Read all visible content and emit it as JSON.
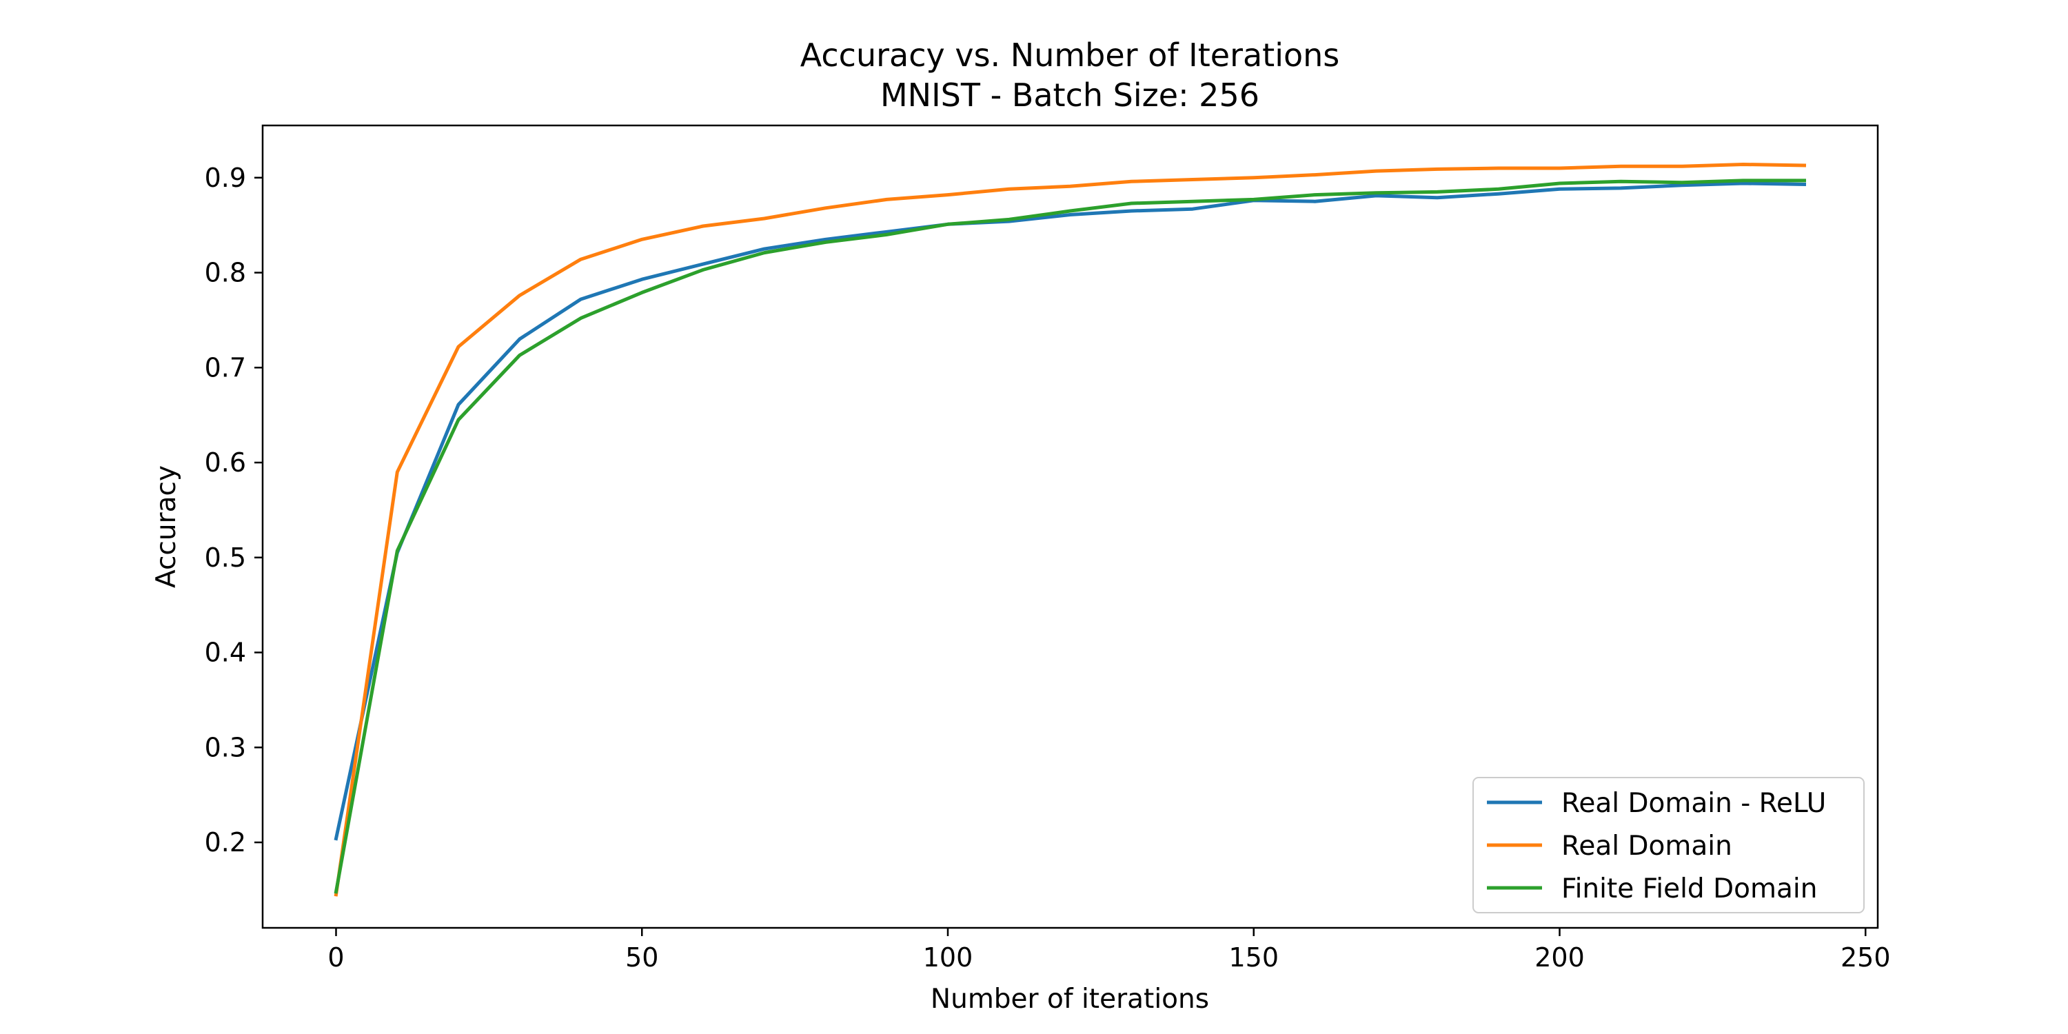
{
  "chart_data": {
    "type": "line",
    "title": "Accuracy vs. Number of Iterations",
    "subtitle": "MNIST - Batch Size: 256",
    "xlabel": "Number of iterations",
    "ylabel": "Accuracy",
    "xlim": [
      -12,
      252
    ],
    "ylim": [
      0.11,
      0.955
    ],
    "xticks": [
      0,
      50,
      100,
      150,
      200,
      250
    ],
    "yticks": [
      0.2,
      0.3,
      0.4,
      0.5,
      0.6,
      0.7,
      0.8,
      0.9
    ],
    "grid": false,
    "legend_position": "lower-right",
    "series": [
      {
        "name": "Real Domain - ReLU",
        "color": "#1f77b4",
        "x": [
          0,
          10,
          20,
          30,
          40,
          50,
          60,
          70,
          80,
          90,
          100,
          110,
          120,
          130,
          140,
          150,
          160,
          170,
          180,
          190,
          200,
          210,
          220,
          230,
          240
        ],
        "values": [
          0.204,
          0.505,
          0.661,
          0.73,
          0.772,
          0.793,
          0.809,
          0.825,
          0.835,
          0.843,
          0.851,
          0.854,
          0.861,
          0.865,
          0.867,
          0.876,
          0.875,
          0.881,
          0.879,
          0.883,
          0.888,
          0.889,
          0.892,
          0.894,
          0.893
        ]
      },
      {
        "name": "Real Domain",
        "color": "#ff7f0e",
        "x": [
          0,
          10,
          20,
          30,
          40,
          50,
          60,
          70,
          80,
          90,
          100,
          110,
          120,
          130,
          140,
          150,
          160,
          170,
          180,
          190,
          200,
          210,
          220,
          230,
          240
        ],
        "values": [
          0.145,
          0.59,
          0.722,
          0.776,
          0.814,
          0.835,
          0.849,
          0.857,
          0.868,
          0.877,
          0.882,
          0.888,
          0.891,
          0.896,
          0.898,
          0.9,
          0.903,
          0.907,
          0.909,
          0.91,
          0.91,
          0.912,
          0.912,
          0.914,
          0.913
        ]
      },
      {
        "name": "Finite Field Domain",
        "color": "#2ca02c",
        "x": [
          0,
          10,
          20,
          30,
          40,
          50,
          60,
          70,
          80,
          90,
          100,
          110,
          120,
          130,
          140,
          150,
          160,
          170,
          180,
          190,
          200,
          210,
          220,
          230,
          240
        ],
        "values": [
          0.148,
          0.507,
          0.645,
          0.713,
          0.752,
          0.779,
          0.803,
          0.821,
          0.832,
          0.84,
          0.851,
          0.856,
          0.865,
          0.873,
          0.875,
          0.877,
          0.882,
          0.884,
          0.885,
          0.888,
          0.894,
          0.896,
          0.895,
          0.897,
          0.897
        ]
      }
    ]
  }
}
